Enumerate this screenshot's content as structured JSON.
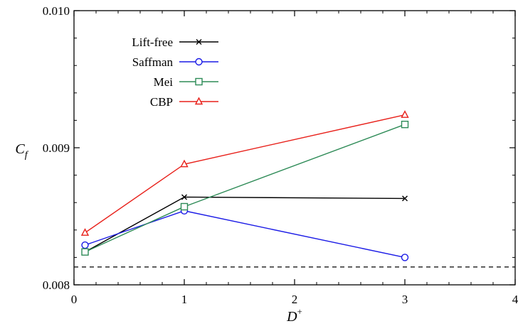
{
  "chart_data": {
    "type": "line",
    "xlabel": "D",
    "xlabel_sup": "+",
    "ylabel": "C",
    "ylabel_sub": "f",
    "xlim": [
      0,
      4
    ],
    "ylim": [
      0.008,
      0.01
    ],
    "x_ticks": [
      0,
      1,
      2,
      3,
      4
    ],
    "x_tick_labels": [
      "0",
      "1",
      "2",
      "3",
      "4"
    ],
    "y_ticks": [
      0.008,
      0.009,
      0.01
    ],
    "y_tick_labels": [
      "0.008",
      "0.009",
      "0.010"
    ],
    "x_minor_step": 0.2,
    "y_minor_step": 0.0002,
    "grid": false,
    "legend_position": "top-left",
    "reference_line": {
      "y": 0.00813,
      "style": "dashed",
      "color": "#000000"
    },
    "series": [
      {
        "name": "Lift-free",
        "color": "#000000",
        "marker": "x",
        "x": [
          0.1,
          1,
          3
        ],
        "y": [
          0.00824,
          0.00864,
          0.00863
        ]
      },
      {
        "name": "Saffman",
        "color": "#1a1ae6",
        "marker": "circle",
        "x": [
          0.1,
          1,
          3
        ],
        "y": [
          0.00829,
          0.00854,
          0.0082
        ]
      },
      {
        "name": "Mei",
        "color": "#2e8b57",
        "marker": "square",
        "x": [
          0.1,
          1,
          3
        ],
        "y": [
          0.00824,
          0.00857,
          0.00917
        ]
      },
      {
        "name": "CBP",
        "color": "#e8201a",
        "marker": "triangle",
        "x": [
          0.1,
          1,
          3
        ],
        "y": [
          0.00838,
          0.00888,
          0.00924
        ]
      }
    ]
  }
}
